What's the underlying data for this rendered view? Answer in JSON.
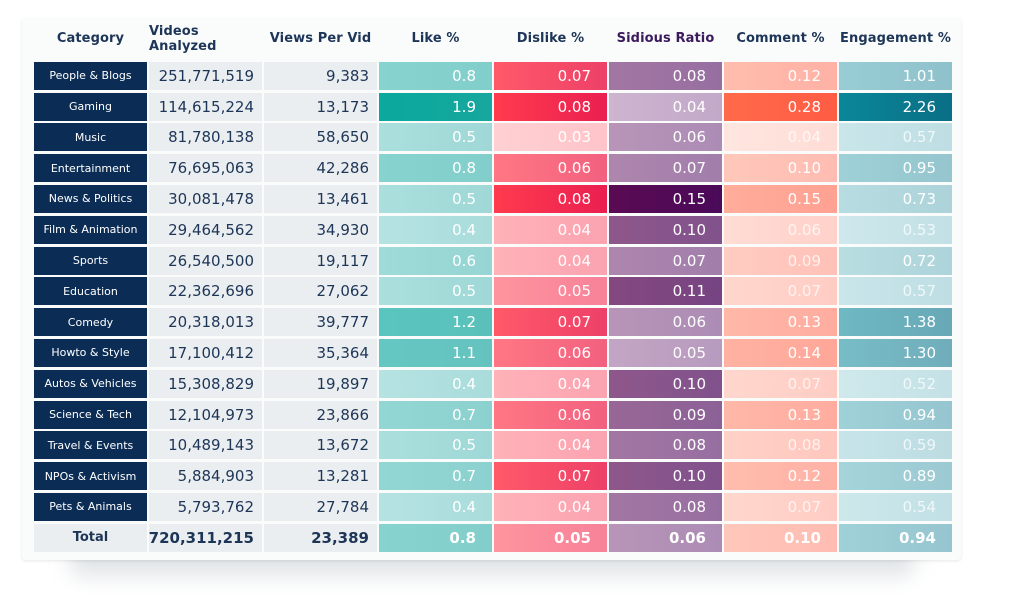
{
  "chart_data": {
    "type": "table",
    "title": "",
    "columns": [
      "Category",
      "Videos Analyzed",
      "Views Per Vid",
      "Like %",
      "Dislike %",
      "Sidious Ratio",
      "Comment %",
      "Engagement %"
    ],
    "rows": [
      {
        "category": "People & Blogs",
        "videos": "251,771,519",
        "views": "9,383",
        "like": "0.8",
        "dislike": "0.07",
        "sidious": "0.08",
        "comment": "0.12",
        "engagement": "1.01"
      },
      {
        "category": "Gaming",
        "videos": "114,615,224",
        "views": "13,173",
        "like": "1.9",
        "dislike": "0.08",
        "sidious": "0.04",
        "comment": "0.28",
        "engagement": "2.26"
      },
      {
        "category": "Music",
        "videos": "81,780,138",
        "views": "58,650",
        "like": "0.5",
        "dislike": "0.03",
        "sidious": "0.06",
        "comment": "0.04",
        "engagement": "0.57"
      },
      {
        "category": "Entertainment",
        "videos": "76,695,063",
        "views": "42,286",
        "like": "0.8",
        "dislike": "0.06",
        "sidious": "0.07",
        "comment": "0.10",
        "engagement": "0.95"
      },
      {
        "category": "News & Politics",
        "videos": "30,081,478",
        "views": "13,461",
        "like": "0.5",
        "dislike": "0.08",
        "sidious": "0.15",
        "comment": "0.15",
        "engagement": "0.73"
      },
      {
        "category": "Film & Animation",
        "videos": "29,464,562",
        "views": "34,930",
        "like": "0.4",
        "dislike": "0.04",
        "sidious": "0.10",
        "comment": "0.06",
        "engagement": "0.53"
      },
      {
        "category": "Sports",
        "videos": "26,540,500",
        "views": "19,117",
        "like": "0.6",
        "dislike": "0.04",
        "sidious": "0.07",
        "comment": "0.09",
        "engagement": "0.72"
      },
      {
        "category": "Education",
        "videos": "22,362,696",
        "views": "27,062",
        "like": "0.5",
        "dislike": "0.05",
        "sidious": "0.11",
        "comment": "0.07",
        "engagement": "0.57"
      },
      {
        "category": "Comedy",
        "videos": "20,318,013",
        "views": "39,777",
        "like": "1.2",
        "dislike": "0.07",
        "sidious": "0.06",
        "comment": "0.13",
        "engagement": "1.38"
      },
      {
        "category": "Howto & Style",
        "videos": "17,100,412",
        "views": "35,364",
        "like": "1.1",
        "dislike": "0.06",
        "sidious": "0.05",
        "comment": "0.14",
        "engagement": "1.30"
      },
      {
        "category": "Autos & Vehicles",
        "videos": "15,308,829",
        "views": "19,897",
        "like": "0.4",
        "dislike": "0.04",
        "sidious": "0.10",
        "comment": "0.07",
        "engagement": "0.52"
      },
      {
        "category": "Science & Tech",
        "videos": "12,104,973",
        "views": "23,866",
        "like": "0.7",
        "dislike": "0.06",
        "sidious": "0.09",
        "comment": "0.13",
        "engagement": "0.94"
      },
      {
        "category": "Travel & Events",
        "videos": "10,489,143",
        "views": "13,672",
        "like": "0.5",
        "dislike": "0.04",
        "sidious": "0.08",
        "comment": "0.08",
        "engagement": "0.59"
      },
      {
        "category": "NPOs & Activism",
        "videos": "5,884,903",
        "views": "13,281",
        "like": "0.7",
        "dislike": "0.07",
        "sidious": "0.10",
        "comment": "0.12",
        "engagement": "0.89"
      },
      {
        "category": "Pets & Animals",
        "videos": "5,793,762",
        "views": "27,784",
        "like": "0.4",
        "dislike": "0.04",
        "sidious": "0.08",
        "comment": "0.07",
        "engagement": "0.54"
      }
    ],
    "total": {
      "category": "Total",
      "videos": "720,311,215",
      "views": "23,389",
      "like": "0.8",
      "dislike": "0.05",
      "sidious": "0.06",
      "comment": "0.10",
      "engagement": "0.94"
    },
    "color_scales": {
      "like": {
        "low": [
          "#b5e3e2",
          "#a9dcdb"
        ],
        "high": [
          "#0aa89e",
          "#17a79e"
        ],
        "domain": [
          0.4,
          1.9
        ]
      },
      "dislike": {
        "low": [
          "#ffd0d3",
          "#ffc4c9"
        ],
        "high": [
          "#ff3b4e",
          "#ea1f50"
        ],
        "domain": [
          0.03,
          0.08
        ]
      },
      "sidious": {
        "low": [
          "#cdb4cf",
          "#c2a9c9"
        ],
        "high": [
          "#5a0a52",
          "#4a0a5a"
        ],
        "domain": [
          0.04,
          0.15
        ]
      },
      "comment": {
        "low": [
          "#ffe6e0",
          "#ffdcd6"
        ],
        "high": [
          "#ff6a4a",
          "#ff5c44"
        ],
        "domain": [
          0.04,
          0.28
        ]
      },
      "engagement": {
        "low": [
          "#cfe9ec",
          "#c3e1e6"
        ],
        "high": [
          "#0a8799",
          "#0a6e86"
        ],
        "domain": [
          0.52,
          2.26
        ]
      }
    },
    "faded_text_threshold": {
      "like": null,
      "dislike": null,
      "sidious": null,
      "comment": 0.1,
      "engagement": 0.6
    }
  }
}
